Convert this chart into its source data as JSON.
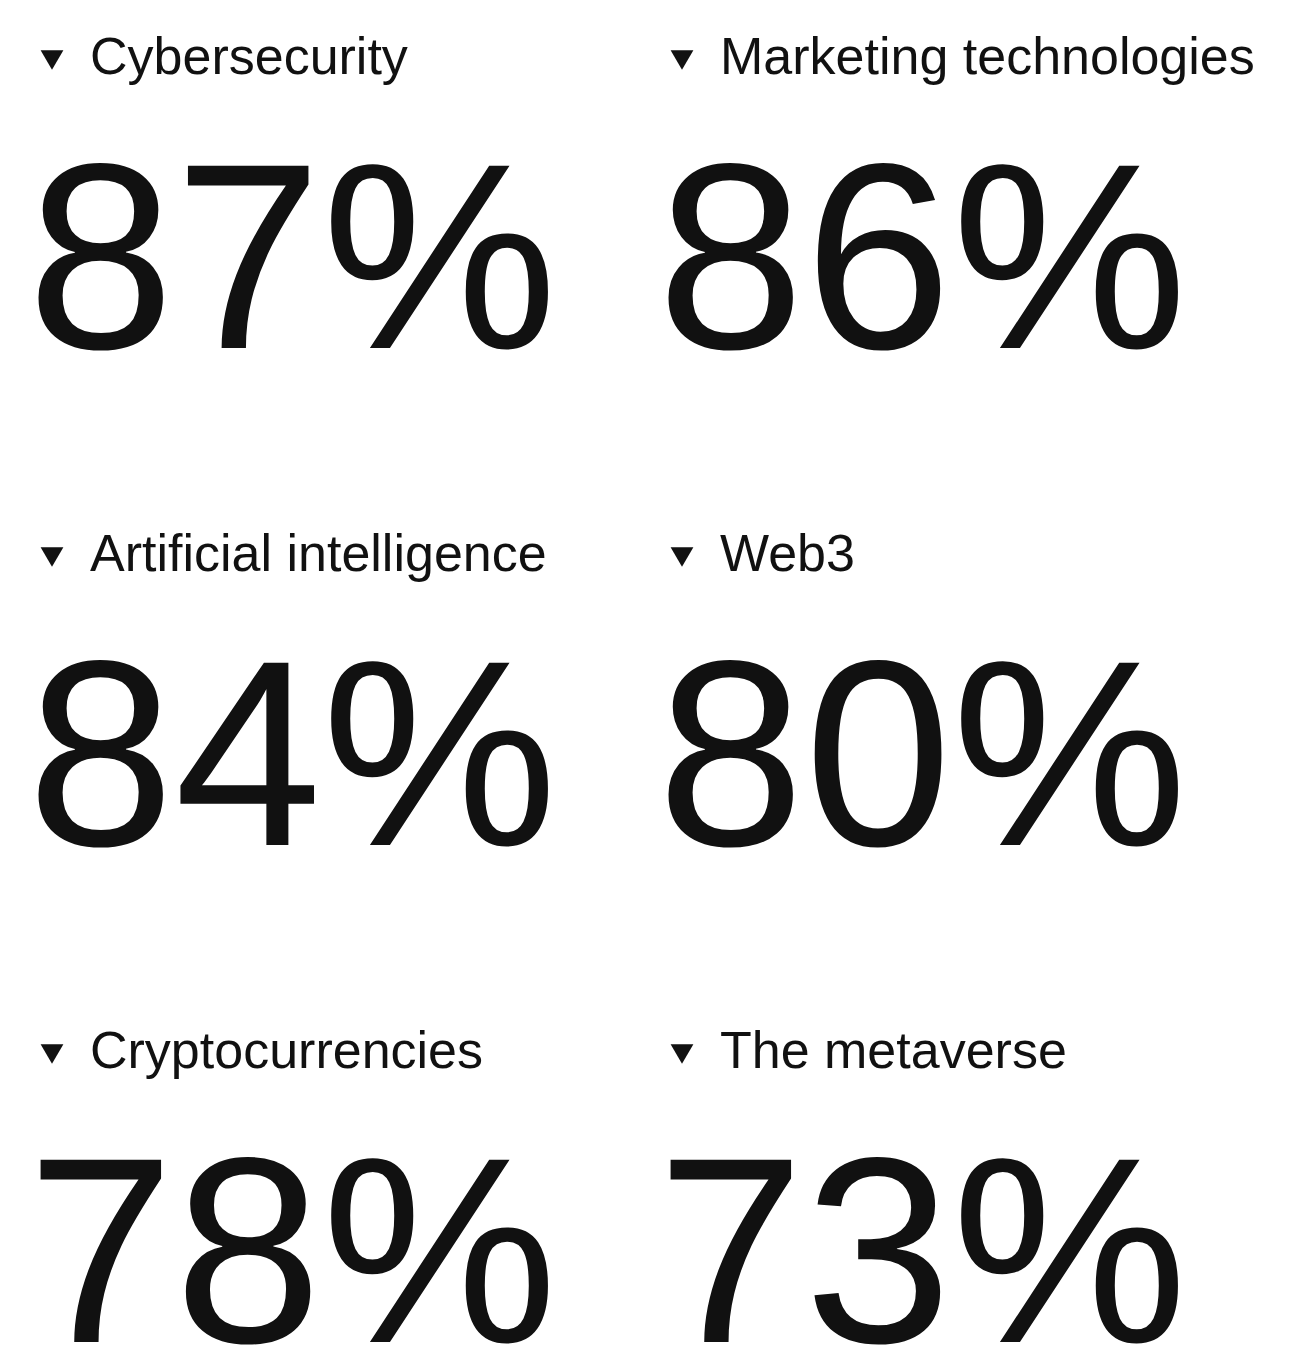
{
  "chart_data": {
    "type": "other",
    "categories": [
      "Cybersecurity",
      "Marketing technologies",
      "Artificial intelligence",
      "Web3",
      "Cryptocurrencies",
      "The metaverse"
    ],
    "values": [
      87,
      86,
      84,
      80,
      78,
      73
    ],
    "value_labels": [
      "87%",
      "86%",
      "84%",
      "80%",
      "78%",
      "73%"
    ]
  }
}
